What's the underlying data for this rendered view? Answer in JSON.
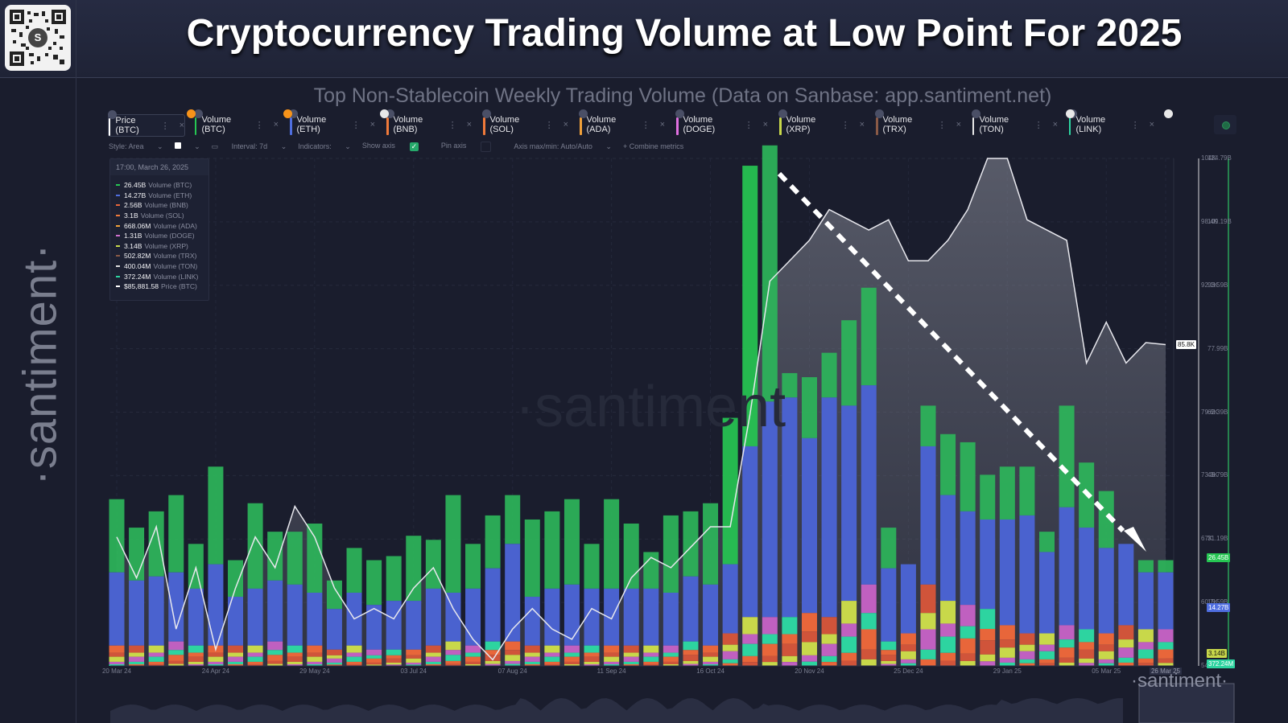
{
  "header": {
    "title": "Cryptocurrency Trading Volume at Low Point For 2025",
    "qr_center": "S"
  },
  "side_logo": "·santiment·",
  "subtitle": "Top Non-Stablecoin Weekly Trading Volume (Data on Sanbase: app.santiment.net)",
  "metric_tabs": [
    {
      "label": "Price (BTC)",
      "color": "#ffffff",
      "active": true
    },
    {
      "label": "Volume (BTC)",
      "color": "#26c653"
    },
    {
      "label": "Volume (ETH)",
      "color": "#4f6ee0"
    },
    {
      "label": "Volume (BNB)",
      "color": "#f07a3a"
    },
    {
      "label": "Volume (SOL)",
      "color": "#f07a3a"
    },
    {
      "label": "Volume (ADA)",
      "color": "#f0a03a"
    },
    {
      "label": "Volume (DOGE)",
      "color": "#e070e0"
    },
    {
      "label": "Volume (XRP)",
      "color": "#c8d84a"
    },
    {
      "label": "Volume (TRX)",
      "color": "#8a5a46"
    },
    {
      "label": "Volume (TON)",
      "color": "#e8e8e8"
    },
    {
      "label": "Volume (LINK)",
      "color": "#2dd4a0"
    }
  ],
  "toolbar": {
    "style": "Style: Area",
    "interval": "Interval: 7d",
    "indicators": "Indicators:",
    "show_axis": "Show axis",
    "show_axis_check": "✓",
    "pin_axis": "Pin axis",
    "axis_maxmin": "Axis max/min: Auto/Auto",
    "combine": "+ Combine metrics"
  },
  "tooltip": {
    "time": "17:00, March 26, 2025",
    "rows": [
      {
        "value": "26.45B",
        "label": "Volume (BTC)",
        "color": "#26c653"
      },
      {
        "value": "14.27B",
        "label": "Volume (ETH)",
        "color": "#4f6ee0"
      },
      {
        "value": "2.56B",
        "label": "Volume (BNB)",
        "color": "#e8663a"
      },
      {
        "value": "3.1B",
        "label": "Volume (SOL)",
        "color": "#f07a3a"
      },
      {
        "value": "668.06M",
        "label": "Volume (ADA)",
        "color": "#f0a03a"
      },
      {
        "value": "1.31B",
        "label": "Volume (DOGE)",
        "color": "#d070d0"
      },
      {
        "value": "3.14B",
        "label": "Volume (XRP)",
        "color": "#c8d84a"
      },
      {
        "value": "502.82M",
        "label": "Volume (TRX)",
        "color": "#8a5a46"
      },
      {
        "value": "400.04M",
        "label": "Volume (TON)",
        "color": "#dddddd"
      },
      {
        "value": "372.24M",
        "label": "Volume (LINK)",
        "color": "#2dd4a0"
      },
      {
        "value": "$85,881.58",
        "label": "Price (BTC)",
        "color": "#ffffff"
      }
    ]
  },
  "watermark": "·santiment",
  "bottom_logo": "·santiment·",
  "chart_data": {
    "type": "bar",
    "subtype": "stacked-bar-with-price-area",
    "title": "Top Non-Stablecoin Weekly Trading Volume",
    "x_ticks": [
      "20 Mar 24",
      "24 Apr 24",
      "29 May 24",
      "03 Jul 24",
      "07 Aug 24",
      "11 Sep 24",
      "16 Oct 24",
      "20 Nov 24",
      "25 Dec 24",
      "29 Jan 25",
      "05 Mar 25",
      "26 Mar 25"
    ],
    "x_tick_week_index": [
      0,
      5,
      10,
      15,
      20,
      25,
      30,
      35,
      40,
      45,
      50,
      53
    ],
    "price_axis": {
      "ticks": [
        "104K",
        "98.4K",
        "92.1K",
        "85.8K",
        "79.6K",
        "73.3K",
        "67K",
        "60.7K",
        "54.4K"
      ],
      "range": [
        54400,
        104000
      ],
      "current": "85.8K"
    },
    "volume_axis": {
      "ticks": [
        "124.79B",
        "109.19B",
        "93.59B",
        "77.99B",
        "62.39B",
        "46.79B",
        "31.19B",
        "15.59B",
        "0"
      ],
      "range": [
        0,
        124.79
      ]
    },
    "volume_badges": [
      {
        "label": "26.45B",
        "value": 26.45,
        "color": "#26c653"
      },
      {
        "label": "14.27B",
        "value": 14.27,
        "color": "#4f6ee0"
      },
      {
        "label": "3.14B",
        "value": 3.14,
        "color": "#c8d84a"
      },
      {
        "label": "372.24M",
        "value": 0.37,
        "color": "#2dd4a0"
      }
    ],
    "annotation": "Dashed downtrend arrow from 20 Nov 24 peak to 26 Mar 25",
    "weeks": 54,
    "total_volume_B": [
      41,
      34,
      38,
      42,
      30,
      49,
      26,
      40,
      33,
      33,
      35,
      21,
      29,
      26,
      27,
      32,
      31,
      42,
      30,
      37,
      42,
      36,
      38,
      41,
      30,
      41,
      35,
      28,
      37,
      38,
      40,
      61,
      123,
      128,
      72,
      71,
      77,
      85,
      93,
      34,
      24,
      64,
      57,
      55,
      47,
      49,
      49,
      33,
      64,
      50,
      43,
      28,
      26,
      26
    ],
    "eth_volume_B": [
      18,
      16,
      17,
      17,
      14,
      20,
      12,
      14,
      15,
      15,
      13,
      10,
      13,
      11,
      12,
      12,
      14,
      12,
      14,
      18,
      24,
      12,
      14,
      15,
      14,
      14,
      14,
      14,
      13,
      16,
      15,
      17,
      42,
      53,
      54,
      43,
      54,
      48,
      49,
      18,
      17,
      34,
      26,
      23,
      22,
      26,
      29,
      20,
      29,
      25,
      21,
      20,
      14,
      14
    ],
    "other_volume_B": [
      5,
      5,
      5,
      6,
      5,
      5,
      5,
      5,
      6,
      5,
      5,
      4,
      5,
      4,
      4,
      4,
      5,
      6,
      5,
      6,
      6,
      5,
      5,
      5,
      5,
      5,
      5,
      5,
      5,
      6,
      5,
      8,
      12,
      12,
      12,
      13,
      12,
      16,
      20,
      6,
      8,
      20,
      16,
      15,
      14,
      10,
      8,
      8,
      10,
      9,
      8,
      10,
      9,
      9
    ],
    "btc_price_K": [
      67,
      63,
      68,
      58,
      64,
      56,
      62,
      67,
      64,
      70,
      67,
      62,
      59,
      60,
      59,
      62,
      64,
      60,
      57,
      55,
      58,
      60,
      58,
      57,
      60,
      59,
      63,
      65,
      64,
      66,
      68,
      68,
      79,
      92,
      94,
      96,
      99,
      98,
      97,
      98,
      94,
      94,
      96,
      99,
      104,
      104,
      98,
      97,
      96,
      84,
      88,
      84,
      86,
      85.8
    ]
  }
}
